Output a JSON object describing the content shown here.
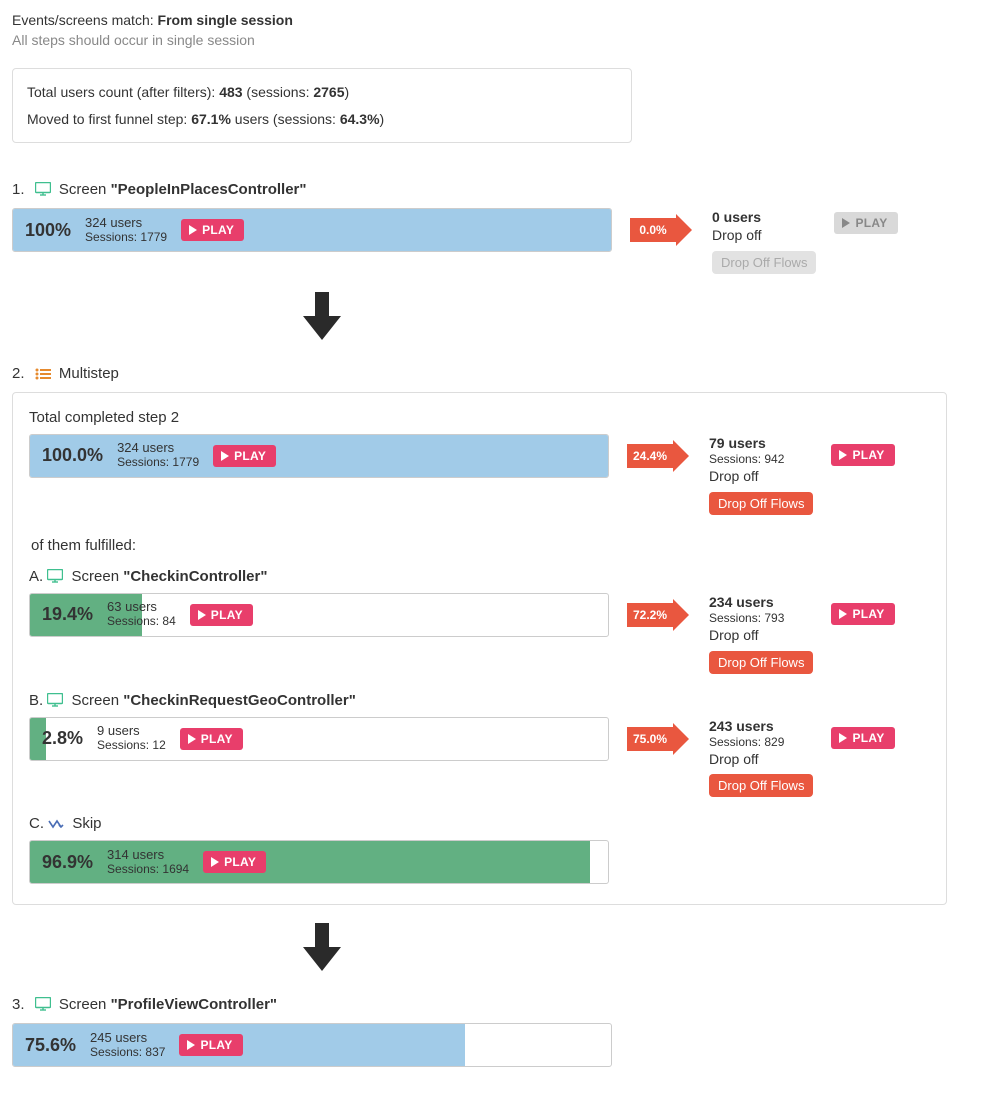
{
  "colors": {
    "blue_bar": "#a1cbe8",
    "green_bar": "#62b082",
    "arrow": "#e9573f",
    "play": "#e83e6b",
    "play_disabled": "#d9d9d9",
    "dflows_on": "#e9573f",
    "dflows_off": "#e2e2e2",
    "down_arrow": "#2a2a2a"
  },
  "header": {
    "label": "Events/screens match: ",
    "value": "From single session",
    "sub": "All steps should occur in single session"
  },
  "summary": {
    "line1_a": "Total users count (after filters): ",
    "line1_users": "483",
    "line1_b": " (sessions: ",
    "line1_sessions": "2765",
    "line1_c": ")",
    "line2_a": "Moved to first funnel step: ",
    "line2_users": "67.1%",
    "line2_b": " users (sessions: ",
    "line2_sessions": "64.3%",
    "line2_c": ")"
  },
  "labels": {
    "screen": "Screen",
    "multistep": "Multistep",
    "skip": "Skip",
    "play": "PLAY",
    "dropoff": "Drop off",
    "dflows": "Drop Off Flows",
    "total_completed": "Total completed step 2",
    "fulfilled": "of them fulfilled:"
  },
  "step1": {
    "prefix": "1.",
    "name": "\"PeopleInPlacesController\"",
    "pct": "100%",
    "pct_width": 100,
    "users": "324 users",
    "sessions": "Sessions: 1779",
    "drop_pct": "0.0%",
    "drop_users": "0 users",
    "drop_play_enabled": false,
    "dflows_enabled": false
  },
  "step2": {
    "prefix": "2.",
    "total": {
      "pct": "100.0%",
      "pct_width": 100,
      "users": "324 users",
      "sessions": "Sessions: 1779",
      "drop_pct": "24.4%",
      "drop_users": "79 users",
      "drop_sessions": "Sessions: 942",
      "drop_play_enabled": true,
      "dflows_enabled": true
    },
    "A": {
      "prefix": "A.",
      "name": "\"CheckinController\"",
      "pct": "19.4%",
      "pct_width": 19.4,
      "users": "63 users",
      "sessions": "Sessions: 84",
      "drop_pct": "72.2%",
      "drop_users": "234 users",
      "drop_sessions": "Sessions: 793"
    },
    "B": {
      "prefix": "B.",
      "name": "\"CheckinRequestGeoController\"",
      "pct": "2.8%",
      "pct_width": 2.8,
      "users": "9 users",
      "sessions": "Sessions: 12",
      "drop_pct": "75.0%",
      "drop_users": "243 users",
      "drop_sessions": "Sessions: 829"
    },
    "C": {
      "prefix": "C.",
      "pct": "96.9%",
      "pct_width": 96.9,
      "users": "314 users",
      "sessions": "Sessions: 1694"
    }
  },
  "step3": {
    "prefix": "3.",
    "name": "\"ProfileViewController\"",
    "pct": "75.6%",
    "pct_width": 75.6,
    "users": "245 users",
    "sessions": "Sessions: 837"
  }
}
